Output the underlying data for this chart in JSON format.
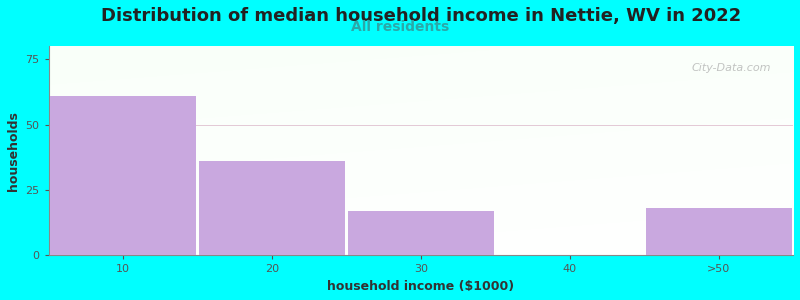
{
  "title": "Distribution of median household income in Nettie, WV in 2022",
  "subtitle": "All residents",
  "xlabel": "household income ($1000)",
  "ylabel": "households",
  "background_color": "#00FFFF",
  "bar_color": "#c9a8df",
  "categories": [
    "10",
    "20",
    "30",
    "40",
    ">50"
  ],
  "values": [
    61,
    36,
    17,
    0,
    18
  ],
  "bar_positions": [
    1,
    2,
    3,
    4,
    5
  ],
  "bar_width": 0.98,
  "ylim": [
    0,
    80
  ],
  "yticks": [
    0,
    25,
    50,
    75
  ],
  "title_fontsize": 13,
  "subtitle_fontsize": 10,
  "subtitle_color": "#2ba8a8",
  "axis_label_fontsize": 9,
  "tick_fontsize": 8,
  "watermark": "City-Data.com",
  "watermark_color": "#aaaaaa"
}
